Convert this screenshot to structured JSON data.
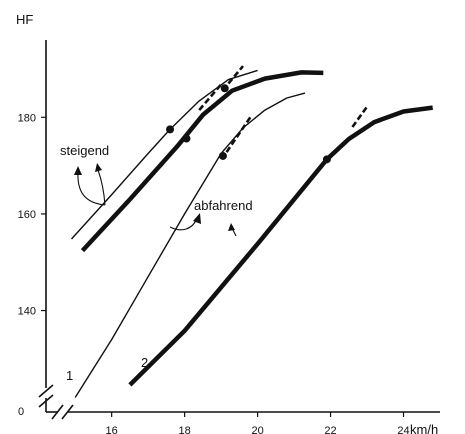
{
  "chart_data": {
    "type": "line",
    "xlabel": "km/h",
    "ylabel": "HF",
    "xlim": [
      14.2,
      25
    ],
    "ylim": [
      119,
      196
    ],
    "x_ticks": [
      16,
      18,
      20,
      22,
      24
    ],
    "y_ticks": [
      140,
      160,
      180
    ],
    "origin_label": "0",
    "grid": false,
    "legend": "none",
    "annotations": {
      "rising": "steigend",
      "descending": "abfahrend",
      "curve_1": "1",
      "curve_2": "2"
    },
    "series": [
      {
        "label_key": "rising",
        "style": "thin",
        "x": [
          14.9,
          16.0,
          17.0,
          17.6,
          18.4,
          19.2,
          20.0
        ],
        "y": [
          154.8,
          164.0,
          172.5,
          177.5,
          183.4,
          187.8,
          189.7
        ]
      },
      {
        "label_key": "rising",
        "style": "thick",
        "x": [
          15.2,
          16.5,
          17.8,
          18.5,
          19.3,
          20.2,
          21.2,
          21.8
        ],
        "y": [
          152.4,
          163.0,
          174.0,
          180.5,
          185.5,
          188.0,
          189.3,
          189.2
        ]
      },
      {
        "label_key": "curve_1",
        "style": "thin",
        "x": [
          15.0,
          16.0,
          17.0,
          18.0,
          19.0,
          19.6,
          20.2,
          20.8,
          21.3
        ],
        "y": [
          122.0,
          134.0,
          147.0,
          160.0,
          172.5,
          177.8,
          181.5,
          184.0,
          185.0
        ]
      },
      {
        "label_key": "curve_2",
        "style": "thick",
        "x": [
          16.5,
          18.0,
          20.0,
          21.9,
          22.5,
          23.2,
          24.0,
          24.8
        ],
        "y": [
          124.6,
          135.8,
          153.8,
          171.3,
          175.5,
          179.0,
          181.2,
          182.0
        ]
      }
    ],
    "deflection_points": [
      {
        "x": 17.6,
        "y": 177.5
      },
      {
        "x": 18.05,
        "y": 175.6
      },
      {
        "x": 19.1,
        "y": 186.0
      },
      {
        "x": 19.05,
        "y": 172.0
      },
      {
        "x": 21.9,
        "y": 171.3
      }
    ],
    "dashed_extensions": [
      {
        "x": [
          18.4,
          19.0
        ],
        "y": [
          181.5,
          186.8
        ]
      },
      {
        "x": [
          19.2,
          19.6
        ],
        "y": [
          187.0,
          190.6
        ]
      },
      {
        "x": [
          19.15,
          19.8
        ],
        "y": [
          172.8,
          180.0
        ]
      },
      {
        "x": [
          22.6,
          23.0
        ],
        "y": [
          178.0,
          182.2
        ]
      }
    ]
  }
}
